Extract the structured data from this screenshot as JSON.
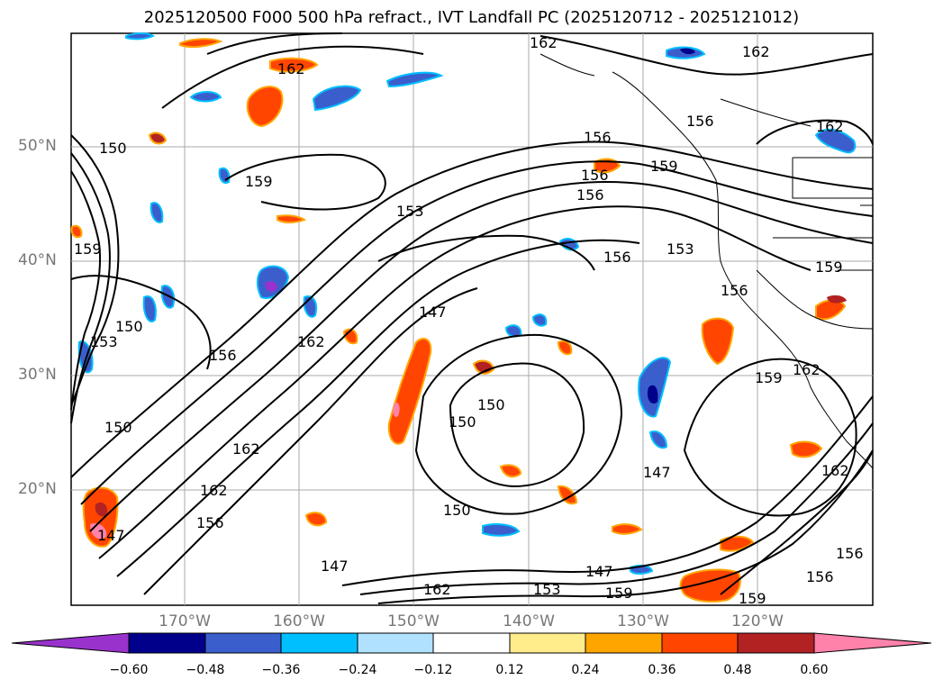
{
  "title": "2025120500 F000 500 hPa refract., IVT Landfall PC (2025120712 - 2025121012)",
  "lat_labels": [
    "50°N",
    "40°N",
    "30°N",
    "20°N"
  ],
  "lon_labels": [
    "170°W",
    "160°W",
    "150°W",
    "140°W",
    "130°W",
    "120°W"
  ],
  "contour_labels": [
    "162",
    "162",
    "162",
    "162",
    "159",
    "156",
    "156",
    "156",
    "159",
    "153",
    "156",
    "153",
    "150",
    "159",
    "156",
    "147",
    "162",
    "159",
    "156",
    "156",
    "150",
    "150",
    "150",
    "153",
    "150",
    "147",
    "162",
    "162",
    "150",
    "147",
    "159",
    "147",
    "162",
    "162",
    "156",
    "162",
    "147",
    "153",
    "159",
    "156",
    "159",
    "156"
  ],
  "colorbar": {
    "tick_labels": [
      "−0.60",
      "−0.48",
      "−0.36",
      "−0.24",
      "−0.12",
      "0.12",
      "0.24",
      "0.36",
      "0.48",
      "0.60"
    ],
    "colors": [
      "#9932cc",
      "#00008b",
      "#3a5fcd",
      "#00bfff",
      "#b0e2ff",
      "#ffffff",
      "#ffec8b",
      "#ffa500",
      "#ff4500",
      "#b22222",
      "#ff82ab"
    ]
  }
}
